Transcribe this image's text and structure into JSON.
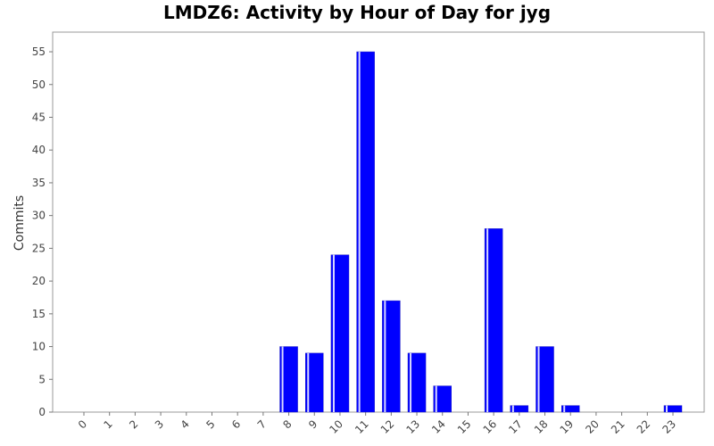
{
  "chart_data": {
    "type": "bar",
    "title": "LMDZ6: Activity by Hour of Day for jyg",
    "xlabel": "",
    "ylabel": "Commits",
    "ylim": [
      0,
      58
    ],
    "yticks": [
      0,
      5,
      10,
      15,
      20,
      25,
      30,
      35,
      40,
      45,
      50,
      55
    ],
    "grid": false,
    "legend": "none",
    "categories": [
      "0",
      "1",
      "2",
      "3",
      "4",
      "5",
      "6",
      "7",
      "8",
      "9",
      "10",
      "11",
      "12",
      "13",
      "14",
      "15",
      "16",
      "17",
      "18",
      "19",
      "20",
      "21",
      "22",
      "23"
    ],
    "values": [
      0,
      0,
      0,
      0,
      0,
      0,
      0,
      0,
      10,
      9,
      24,
      55,
      17,
      9,
      4,
      0,
      28,
      1,
      10,
      1,
      0,
      0,
      0,
      1
    ],
    "bar_color": "#0000ff",
    "bar_highlight": "#ffffff"
  }
}
